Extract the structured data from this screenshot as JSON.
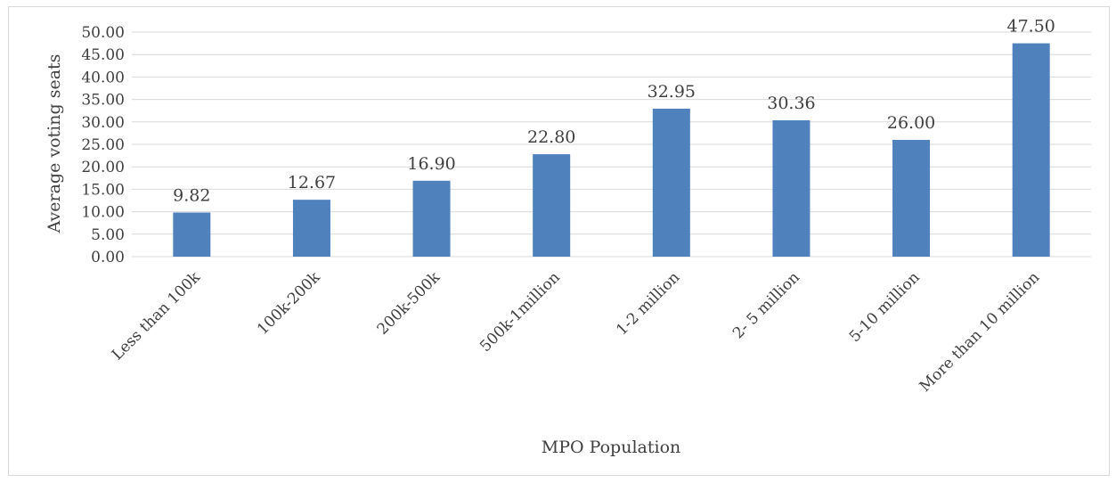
{
  "chart_data": {
    "type": "bar",
    "title": "",
    "xlabel": "MPO Population",
    "ylabel": "Average voting seats",
    "categories": [
      "Less than 100k",
      "100k-200k",
      "200k-500k",
      "500k-1million",
      "1-2 million",
      "2- 5 million",
      "5-10 million",
      "More than 10 million"
    ],
    "values": [
      9.82,
      12.67,
      16.9,
      22.8,
      32.95,
      30.36,
      26.0,
      47.5
    ],
    "value_labels": [
      "9.82",
      "12.67",
      "16.90",
      "22.80",
      "32.95",
      "30.36",
      "26.00",
      "47.50"
    ],
    "ylim": [
      0,
      50
    ],
    "yticks": [
      "0.00",
      "5.00",
      "10.00",
      "15.00",
      "20.00",
      "25.00",
      "30.00",
      "35.00",
      "40.00",
      "45.00",
      "50.00"
    ],
    "grid": true,
    "legend": "none",
    "bar_color": "#4f81bd"
  }
}
